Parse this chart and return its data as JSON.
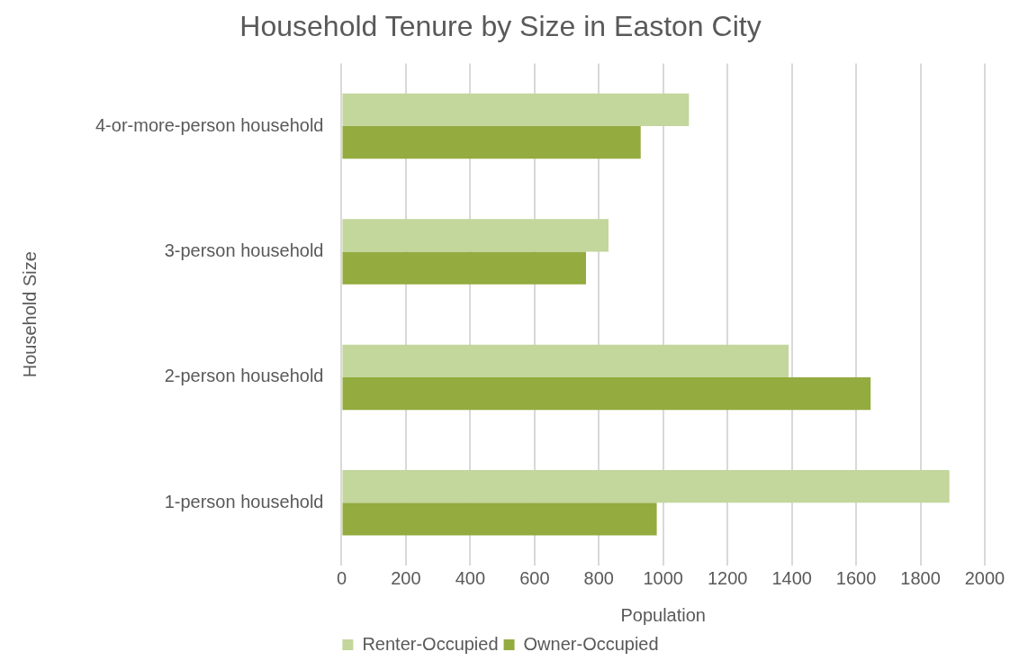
{
  "chart_data": {
    "type": "bar",
    "orientation": "horizontal",
    "title": "Household Tenure by Size in Easton City",
    "xlabel": "Population",
    "ylabel": "Household Size",
    "categories": [
      "4-or-more-person household",
      "3-person household",
      "2-person household",
      "1-person household"
    ],
    "series": [
      {
        "name": "Renter-Occupied",
        "color": "#c3d69b",
        "values": [
          1080,
          830,
          1390,
          1890
        ]
      },
      {
        "name": "Owner-Occupied",
        "color": "#93ab3f",
        "values": [
          930,
          760,
          1645,
          980
        ]
      }
    ],
    "xlim": [
      0,
      2000
    ],
    "xticks": [
      0,
      200,
      400,
      600,
      800,
      1000,
      1200,
      1400,
      1600,
      1800,
      2000
    ],
    "grid": "x",
    "legend": "bottom"
  }
}
